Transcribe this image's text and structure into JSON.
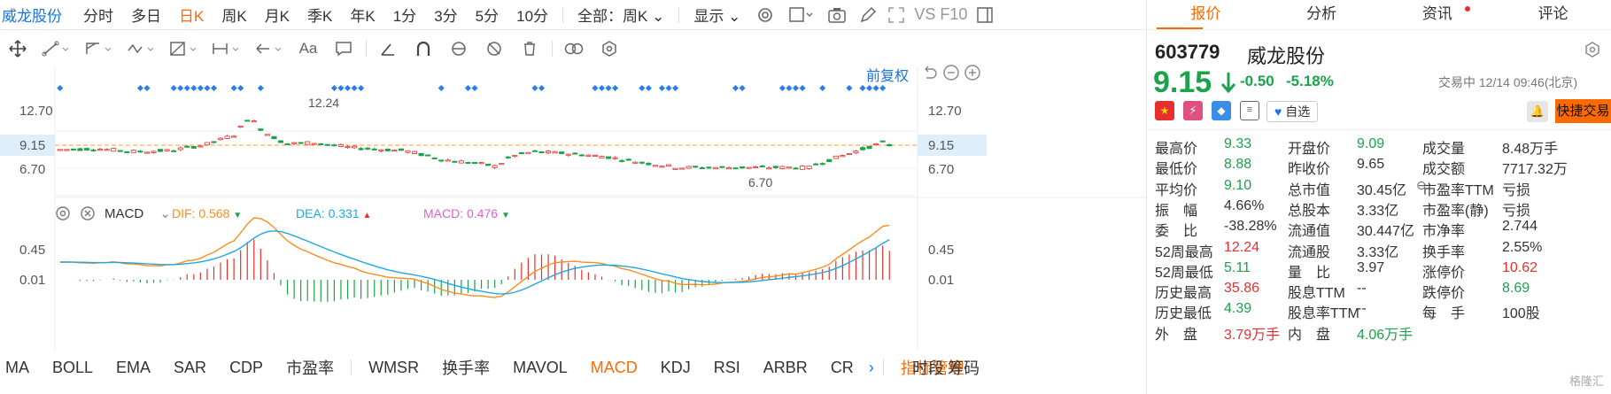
{
  "topbar": {
    "stock_name": "威龙股份",
    "periods": [
      "分时",
      "多日",
      "日K",
      "周K",
      "月K",
      "季K",
      "年K",
      "1分",
      "3分",
      "5分",
      "10分"
    ],
    "active_period": "日K",
    "scope": "全部：周K",
    "display": "显示",
    "compare_label": "VS F10"
  },
  "drawbar": {
    "text_tool": "Aa"
  },
  "chart": {
    "adjust_label": "前复权",
    "price_axis_labels": [
      "12.70",
      "9.15",
      "6.70"
    ],
    "current_price_tag": "9.15",
    "high_annotation": "12.24",
    "low_annotation": "6.70",
    "macd_panel": {
      "indicator": "MACD",
      "dif_label": "DIF: 0.568",
      "dea_label": "DEA: 0.331",
      "macd_label": "MACD: 0.476",
      "axis_labels": [
        "0.45",
        "0.01"
      ],
      "colors": {
        "dif": "#ff8c1a",
        "dea": "#1fa8e0",
        "macd": "#e060d0",
        "up": "#e63030",
        "down": "#1aa34a"
      }
    }
  },
  "bottom_tabs": {
    "items": [
      "MA",
      "BOLL",
      "EMA",
      "SAR",
      "CDP",
      "市盈率",
      "WMSR",
      "换手率",
      "MAVOL",
      "MACD",
      "KDJ",
      "RSI",
      "ARBR",
      "CR"
    ],
    "active": "MACD",
    "manage": "指标管理",
    "right1": "时段",
    "right2": "筹码"
  },
  "right_panel": {
    "tabs": [
      "报价",
      "分析",
      "资讯",
      "评论"
    ],
    "active_tab": "报价",
    "code": "603779",
    "name": "威龙股份",
    "price": "9.15",
    "change": "-0.50",
    "change_pct": "-5.18%",
    "status": "交易中 12/14 09:46(北京)",
    "watch_label": "自选",
    "trade_button": "快捷交易",
    "quotes": [
      [
        {
          "l": "最高价",
          "v": "9.33",
          "c": "down"
        },
        {
          "l": "开盘价",
          "v": "9.09",
          "c": "down"
        },
        {
          "l": "成交量",
          "v": "8.48万手",
          "c": "neu"
        }
      ],
      [
        {
          "l": "最低价",
          "v": "8.88",
          "c": "down"
        },
        {
          "l": "昨收价",
          "v": "9.65",
          "c": "neu"
        },
        {
          "l": "成交额",
          "v": "7717.32万",
          "c": "neu"
        }
      ],
      [
        {
          "l": "平均价",
          "v": "9.10",
          "c": "down"
        },
        {
          "l": "总市值",
          "v": "30.45亿",
          "c": "neu"
        },
        {
          "l": "市盈率TTM",
          "v": "亏损",
          "c": "neu"
        }
      ],
      [
        {
          "l": "振　幅",
          "v": "4.66%",
          "c": "neu"
        },
        {
          "l": "总股本",
          "v": "3.33亿",
          "c": "neu"
        },
        {
          "l": "市盈率(静)",
          "v": "亏损",
          "c": "neu"
        }
      ],
      [
        {
          "l": "委　比",
          "v": "-38.28%",
          "c": "neu"
        },
        {
          "l": "流通值",
          "v": "30.447亿",
          "c": "neu"
        },
        {
          "l": "市净率",
          "v": "2.744",
          "c": "neu"
        }
      ],
      [
        {
          "l": "52周最高",
          "v": "12.24",
          "c": "up"
        },
        {
          "l": "流通股",
          "v": "3.33亿",
          "c": "neu"
        },
        {
          "l": "换手率",
          "v": "2.55%",
          "c": "neu"
        }
      ],
      [
        {
          "l": "52周最低",
          "v": "5.11",
          "c": "down"
        },
        {
          "l": "量　比",
          "v": "3.97",
          "c": "neu"
        },
        {
          "l": "涨停价",
          "v": "10.62",
          "c": "up"
        }
      ],
      [
        {
          "l": "历史最高",
          "v": "35.86",
          "c": "up"
        },
        {
          "l": "股息TTM",
          "v": "--",
          "c": "neu"
        },
        {
          "l": "跌停价",
          "v": "8.69",
          "c": "down"
        }
      ],
      [
        {
          "l": "历史最低",
          "v": "4.39",
          "c": "down"
        },
        {
          "l": "股息率TTM",
          "v": "--",
          "c": "neu"
        },
        {
          "l": "每　手",
          "v": "100股",
          "c": "neu"
        }
      ],
      [
        {
          "l": "外　盘",
          "v": "3.79万手",
          "c": "up"
        },
        {
          "l": "内　盘",
          "v": "4.06万手",
          "c": "down"
        },
        {
          "l": "",
          "v": "",
          "c": "neu"
        }
      ]
    ],
    "watermark": "格隆汇"
  }
}
